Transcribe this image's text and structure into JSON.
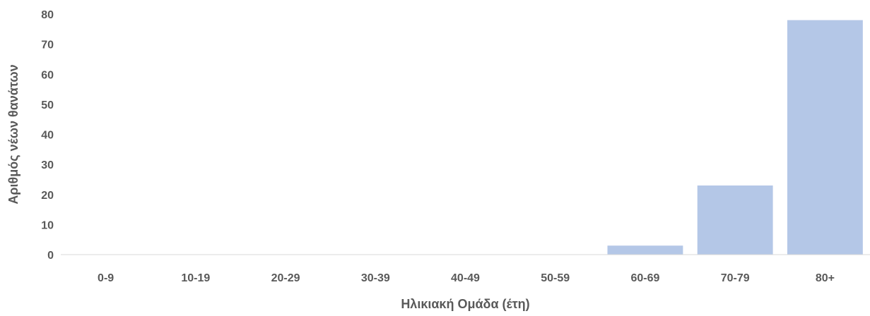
{
  "chart_data": {
    "type": "bar",
    "title": "",
    "xlabel": "Ηλικιακή Ομάδα (έτη)",
    "ylabel": "Αριθμός νέων θανάτων",
    "categories": [
      "0-9",
      "10-19",
      "20-29",
      "30-39",
      "40-49",
      "50-59",
      "60-69",
      "70-79",
      "80+"
    ],
    "values": [
      0,
      0,
      0,
      0,
      0,
      0,
      3,
      23,
      78
    ],
    "ylim": [
      0,
      80
    ],
    "yticks": [
      0,
      10,
      20,
      30,
      40,
      50,
      60,
      70,
      80
    ],
    "grid": false,
    "legend": "none",
    "bar_color": "#b4c7e7",
    "axis_color": "#000000",
    "text_color": "#595959"
  }
}
